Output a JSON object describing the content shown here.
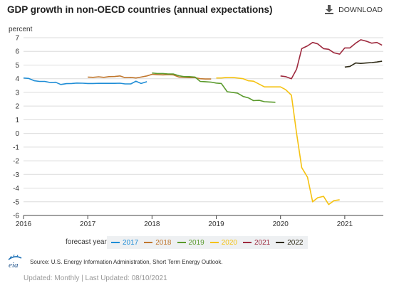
{
  "header": {
    "title": "GDP growth in non-OECD countries (annual expectations)",
    "download_label": "DOWNLOAD"
  },
  "legend": {
    "title": "forecast year:",
    "items": [
      {
        "label": "2017",
        "color": "#1f8dd6"
      },
      {
        "label": "2018",
        "color": "#c0772e"
      },
      {
        "label": "2019",
        "color": "#5a9a2c"
      },
      {
        "label": "2020",
        "color": "#f5c211"
      },
      {
        "label": "2021",
        "color": "#9e2a3e"
      },
      {
        "label": "2022",
        "color": "#2e2a16"
      }
    ]
  },
  "footer": {
    "logo_text": "eia",
    "source": "Source: U.S. Energy Information Administration, Short Term Energy Outlook.",
    "updated": "Updated: Monthly | Last Updated: 08/10/2021"
  },
  "chart_data": {
    "type": "line",
    "ylabel": "percent",
    "ylim": [
      -6,
      7
    ],
    "xlim": [
      2016.0,
      2021.6
    ],
    "yticks": [
      7,
      6,
      5,
      4,
      3,
      2,
      1,
      0,
      -1,
      -2,
      -3,
      -4,
      -5,
      -6
    ],
    "xticks": [
      {
        "value": 2016,
        "label": "2016"
      },
      {
        "value": 2017,
        "label": "2017"
      },
      {
        "value": 2018,
        "label": "2018"
      },
      {
        "value": 2019,
        "label": "2019"
      },
      {
        "value": 2020,
        "label": "2020"
      },
      {
        "value": 2021,
        "label": "2021"
      }
    ],
    "grid": true,
    "series": [
      {
        "name": "2017",
        "color": "#1f8dd6",
        "points": [
          [
            2016.0,
            4.05
          ],
          [
            2016.08,
            4.02
          ],
          [
            2016.17,
            3.85
          ],
          [
            2016.25,
            3.8
          ],
          [
            2016.33,
            3.8
          ],
          [
            2016.42,
            3.72
          ],
          [
            2016.5,
            3.74
          ],
          [
            2016.58,
            3.58
          ],
          [
            2016.67,
            3.64
          ],
          [
            2016.75,
            3.65
          ],
          [
            2016.83,
            3.68
          ],
          [
            2016.92,
            3.67
          ],
          [
            2017.0,
            3.65
          ],
          [
            2017.08,
            3.65
          ],
          [
            2017.17,
            3.66
          ],
          [
            2017.25,
            3.66
          ],
          [
            2017.33,
            3.66
          ],
          [
            2017.42,
            3.66
          ],
          [
            2017.5,
            3.67
          ],
          [
            2017.58,
            3.62
          ],
          [
            2017.67,
            3.62
          ],
          [
            2017.75,
            3.82
          ],
          [
            2017.83,
            3.65
          ],
          [
            2017.92,
            3.78
          ]
        ]
      },
      {
        "name": "2018",
        "color": "#c0772e",
        "points": [
          [
            2017.0,
            4.12
          ],
          [
            2017.08,
            4.1
          ],
          [
            2017.17,
            4.14
          ],
          [
            2017.25,
            4.1
          ],
          [
            2017.33,
            4.15
          ],
          [
            2017.42,
            4.16
          ],
          [
            2017.5,
            4.2
          ],
          [
            2017.58,
            4.08
          ],
          [
            2017.67,
            4.1
          ],
          [
            2017.75,
            4.05
          ],
          [
            2017.83,
            4.12
          ],
          [
            2017.92,
            4.2
          ],
          [
            2018.0,
            4.32
          ],
          [
            2018.08,
            4.3
          ],
          [
            2018.17,
            4.28
          ],
          [
            2018.25,
            4.3
          ],
          [
            2018.33,
            4.28
          ],
          [
            2018.42,
            4.12
          ],
          [
            2018.5,
            4.1
          ],
          [
            2018.58,
            4.08
          ],
          [
            2018.67,
            4.08
          ],
          [
            2018.75,
            4.0
          ],
          [
            2018.83,
            3.98
          ],
          [
            2018.92,
            3.98
          ]
        ]
      },
      {
        "name": "2019",
        "color": "#5a9a2c",
        "points": [
          [
            2018.0,
            4.42
          ],
          [
            2018.08,
            4.38
          ],
          [
            2018.17,
            4.38
          ],
          [
            2018.25,
            4.35
          ],
          [
            2018.33,
            4.35
          ],
          [
            2018.42,
            4.22
          ],
          [
            2018.5,
            4.15
          ],
          [
            2018.58,
            4.15
          ],
          [
            2018.67,
            4.12
          ],
          [
            2018.75,
            3.8
          ],
          [
            2018.83,
            3.78
          ],
          [
            2018.92,
            3.75
          ],
          [
            2019.0,
            3.68
          ],
          [
            2019.08,
            3.65
          ],
          [
            2019.17,
            3.05
          ],
          [
            2019.25,
            3.0
          ],
          [
            2019.33,
            2.95
          ],
          [
            2019.42,
            2.7
          ],
          [
            2019.5,
            2.6
          ],
          [
            2019.58,
            2.4
          ],
          [
            2019.67,
            2.42
          ],
          [
            2019.75,
            2.32
          ],
          [
            2019.83,
            2.3
          ],
          [
            2019.92,
            2.28
          ]
        ]
      },
      {
        "name": "2020",
        "color": "#f5c211",
        "points": [
          [
            2019.0,
            4.05
          ],
          [
            2019.08,
            4.05
          ],
          [
            2019.17,
            4.1
          ],
          [
            2019.25,
            4.1
          ],
          [
            2019.33,
            4.05
          ],
          [
            2019.42,
            4.0
          ],
          [
            2019.5,
            3.85
          ],
          [
            2019.58,
            3.82
          ],
          [
            2019.67,
            3.6
          ],
          [
            2019.75,
            3.4
          ],
          [
            2019.83,
            3.4
          ],
          [
            2019.92,
            3.4
          ],
          [
            2020.0,
            3.4
          ],
          [
            2020.08,
            3.2
          ],
          [
            2020.17,
            2.8
          ],
          [
            2020.25,
            0.0
          ],
          [
            2020.33,
            -2.5
          ],
          [
            2020.42,
            -3.2
          ],
          [
            2020.5,
            -5.0
          ],
          [
            2020.58,
            -4.7
          ],
          [
            2020.67,
            -4.6
          ],
          [
            2020.75,
            -5.2
          ],
          [
            2020.83,
            -4.92
          ],
          [
            2020.92,
            -4.85
          ]
        ]
      },
      {
        "name": "2021",
        "color": "#9e2a3e",
        "points": [
          [
            2020.0,
            4.2
          ],
          [
            2020.08,
            4.15
          ],
          [
            2020.17,
            4.0
          ],
          [
            2020.25,
            4.7
          ],
          [
            2020.33,
            6.2
          ],
          [
            2020.42,
            6.4
          ],
          [
            2020.5,
            6.65
          ],
          [
            2020.58,
            6.55
          ],
          [
            2020.67,
            6.2
          ],
          [
            2020.75,
            6.15
          ],
          [
            2020.83,
            5.9
          ],
          [
            2020.92,
            5.8
          ],
          [
            2021.0,
            6.25
          ],
          [
            2021.08,
            6.25
          ],
          [
            2021.17,
            6.6
          ],
          [
            2021.25,
            6.85
          ],
          [
            2021.33,
            6.75
          ],
          [
            2021.42,
            6.6
          ],
          [
            2021.5,
            6.65
          ],
          [
            2021.58,
            6.45
          ]
        ]
      },
      {
        "name": "2022",
        "color": "#2e2a16",
        "points": [
          [
            2021.0,
            4.85
          ],
          [
            2021.08,
            4.9
          ],
          [
            2021.17,
            5.15
          ],
          [
            2021.25,
            5.12
          ],
          [
            2021.33,
            5.15
          ],
          [
            2021.42,
            5.18
          ],
          [
            2021.5,
            5.22
          ],
          [
            2021.58,
            5.28
          ]
        ]
      }
    ]
  }
}
